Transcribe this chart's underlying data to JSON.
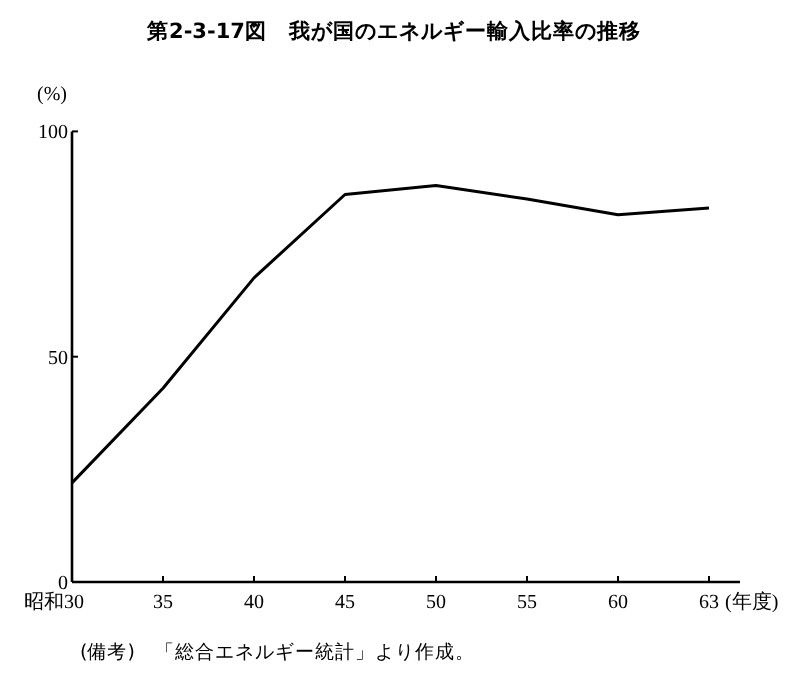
{
  "chart_data": {
    "type": "line",
    "title": "第2-3-17図　我が国のエネルギー輸入比率の推移",
    "ylabel": "(%)",
    "xlabel": "(年度)",
    "categories": [
      "昭和30",
      "35",
      "40",
      "45",
      "50",
      "55",
      "60",
      "63"
    ],
    "series": [
      {
        "color": "#000000",
        "values": [
          22,
          43,
          67.5,
          86,
          88,
          85,
          81.5,
          83
        ]
      }
    ],
    "ylim": [
      0,
      100
    ],
    "yticks": [
      0,
      50,
      100
    ],
    "grid": false,
    "marker": "none",
    "line_style": "solid",
    "annotations": [
      "(備考)　「総合エネルギー統計」より作成。"
    ]
  }
}
